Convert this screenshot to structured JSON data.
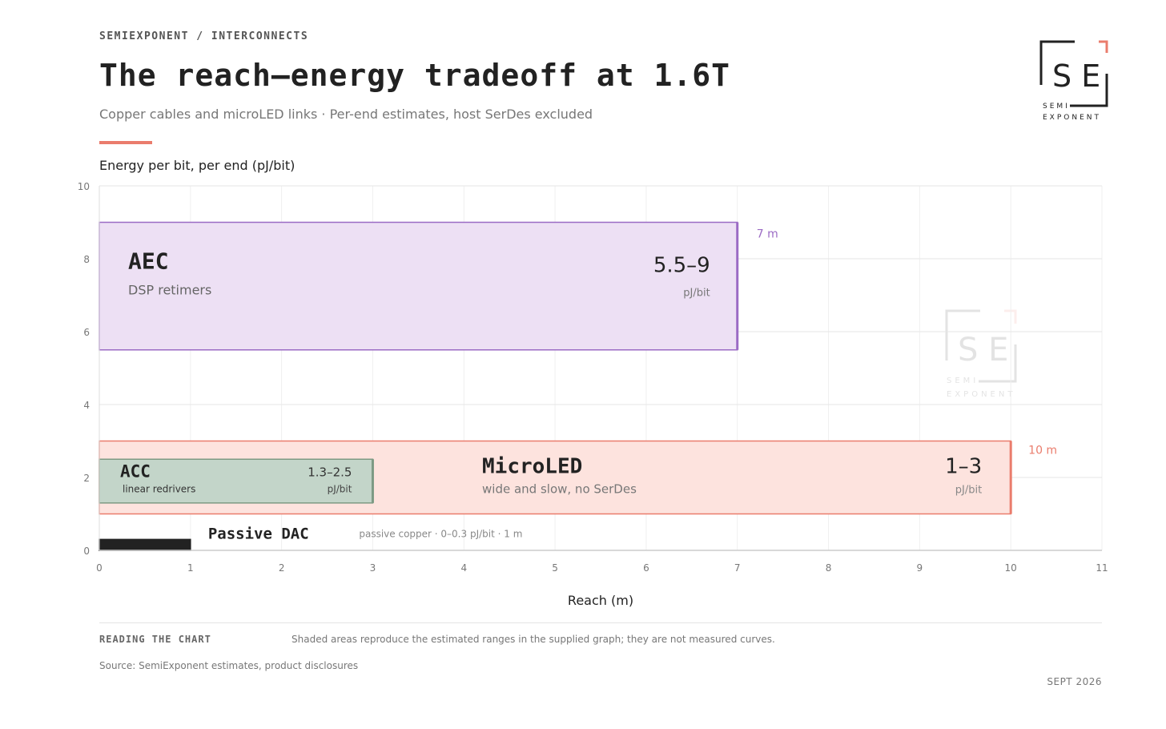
{
  "header": {
    "kicker": "SEMIEXPONENT / INTERCONNECTS",
    "title": "The reach—energy tradeoff at 1.6T",
    "subtitle": "Copper cables and microLED links · Per-end estimates, host SerDes excluded"
  },
  "logo": {
    "letters": "S E",
    "line1": "SEMI",
    "line2": "EXPONENT"
  },
  "colors": {
    "accent": "#ea7c6c",
    "aec_fill": "#ede0f4",
    "aec_stroke": "#9b6bc4",
    "microled_fill": "#fde3de",
    "microled_stroke": "#ea7c6c",
    "acc_fill": "#c3d5c9",
    "acc_stroke": "#7d9a84",
    "dac_fill": "#222222"
  },
  "chart_data": {
    "type": "area",
    "xlabel": "Reach (m)",
    "ylabel": "Energy per bit, per end (pJ/bit)",
    "xlim": [
      0,
      11
    ],
    "ylim": [
      0,
      10
    ],
    "xticks": [
      "0",
      "1",
      "2",
      "3",
      "4",
      "5",
      "6",
      "7",
      "8",
      "9",
      "10",
      "11"
    ],
    "yticks": [
      "0",
      "2",
      "4",
      "6",
      "8",
      "10"
    ],
    "grid": true,
    "regions": [
      {
        "key": "aec",
        "name": "AEC",
        "desc": "DSP retimers",
        "x": [
          0,
          7
        ],
        "y": [
          5.5,
          9
        ],
        "range_label": "5.5–9",
        "unit": "pJ/bit",
        "reach_label": "7 m"
      },
      {
        "key": "microled",
        "name": "MicroLED",
        "desc": "wide and slow, no SerDes",
        "x": [
          0,
          10
        ],
        "y": [
          1,
          3
        ],
        "range_label": "1–3",
        "unit": "pJ/bit",
        "reach_label": "10 m"
      },
      {
        "key": "acc",
        "name": "ACC",
        "desc": "linear redrivers",
        "x": [
          0,
          3
        ],
        "y": [
          1.3,
          2.5
        ],
        "range_label": "1.3–2.5",
        "unit": "pJ/bit"
      },
      {
        "key": "dac",
        "name": "Passive DAC",
        "desc": "passive copper · 0–0.3 pJ/bit · 1 m",
        "x": [
          0,
          1
        ],
        "y": [
          0,
          0.3
        ]
      }
    ]
  },
  "footer": {
    "reading_label": "READING THE CHART",
    "reading_text": "Shaded areas reproduce the estimated ranges in the supplied graph; they are not measured curves.",
    "source": "Source: SemiExponent estimates, product disclosures",
    "date": "SEPT 2026"
  }
}
